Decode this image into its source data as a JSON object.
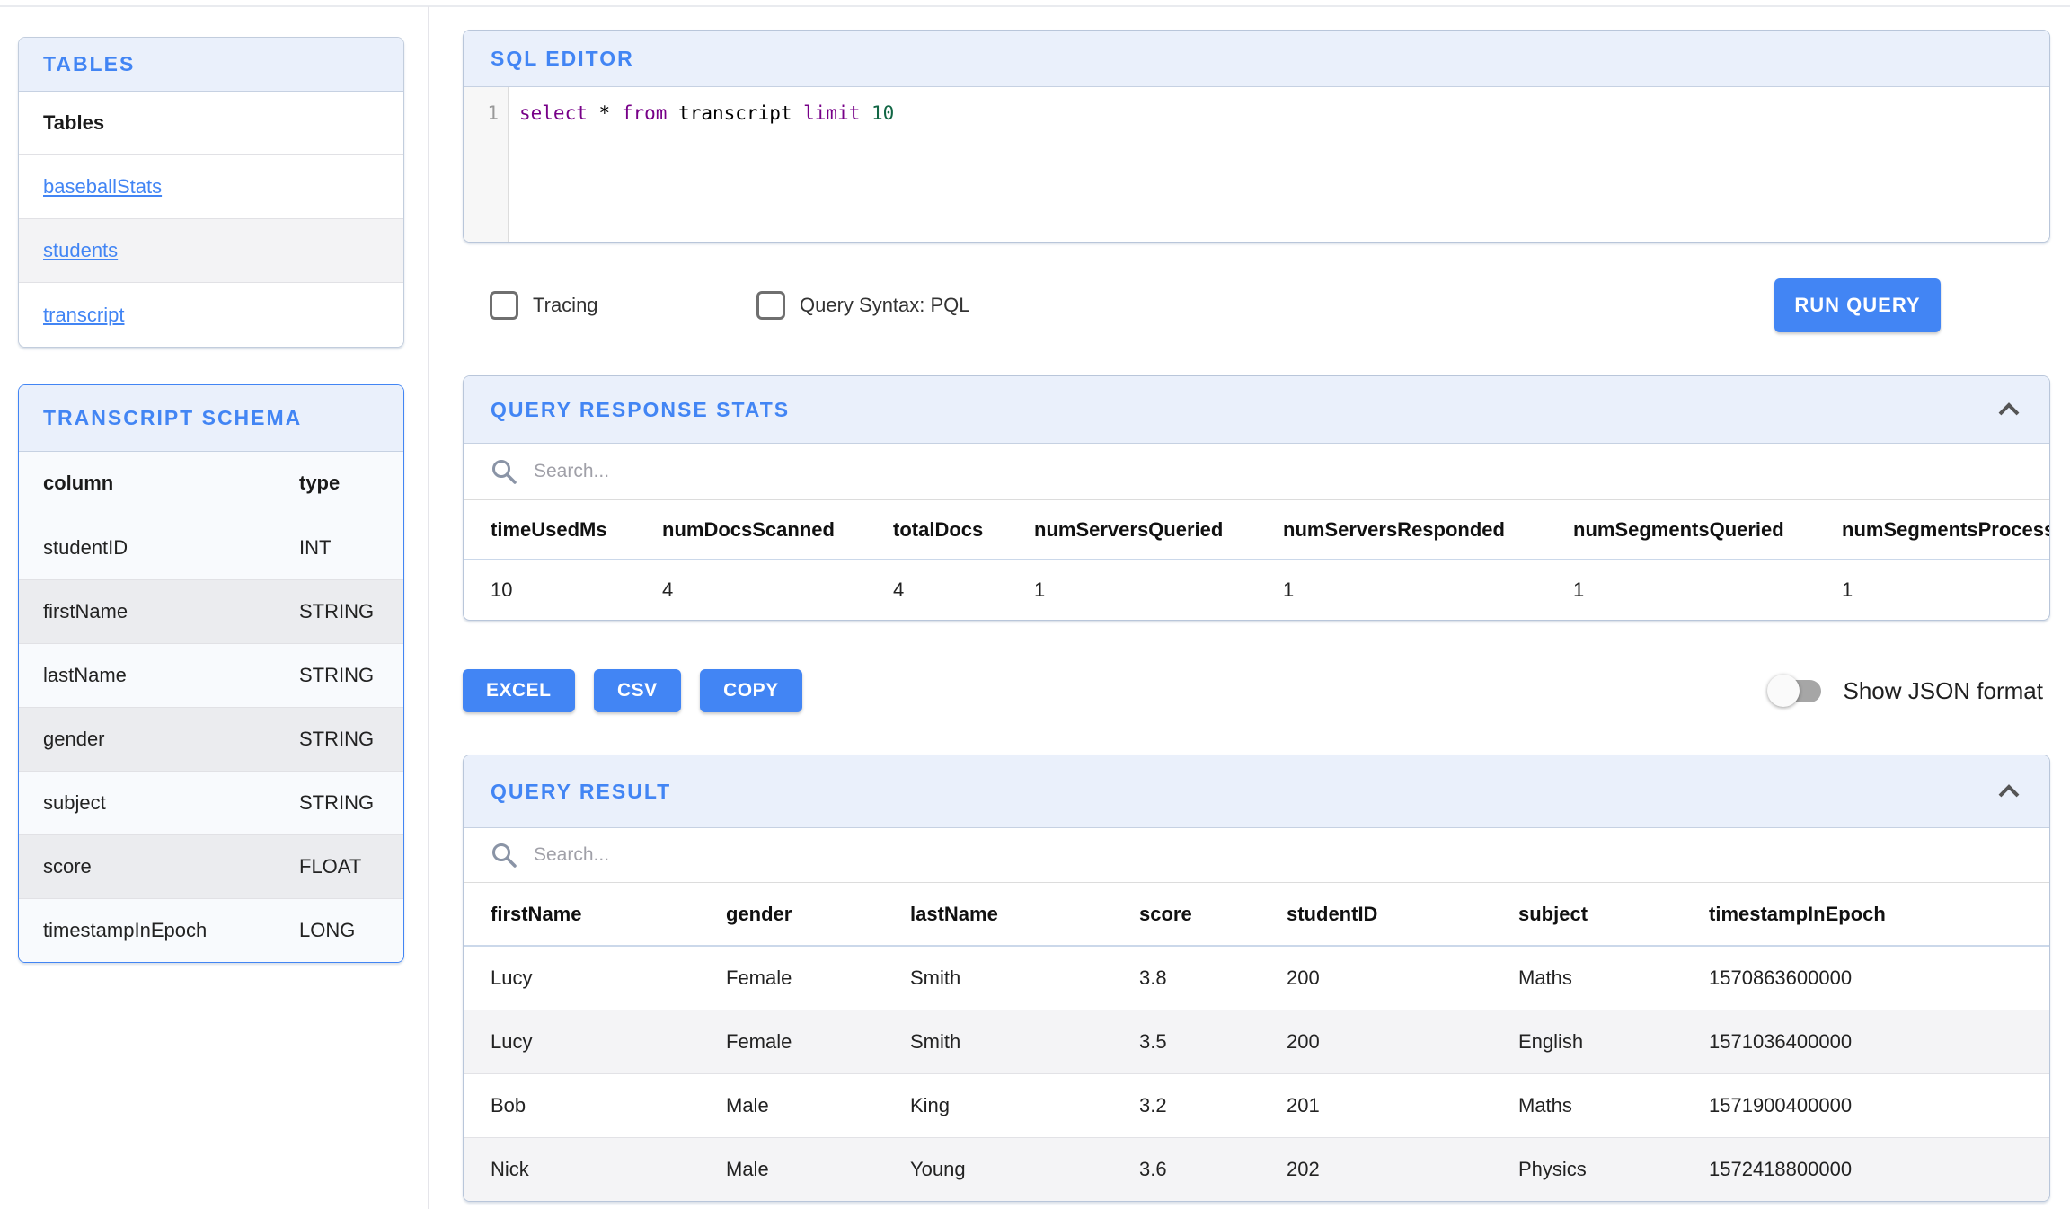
{
  "colors": {
    "accent": "#4285F4",
    "panel_header_bg": "#EAF0FB",
    "keyword_purple": "#770088",
    "number_green": "#116644"
  },
  "sidebar": {
    "tables_panel": {
      "title": "TABLES",
      "list_header": "Tables",
      "items": [
        {
          "label": "baseballStats"
        },
        {
          "label": "students"
        },
        {
          "label": "transcript"
        }
      ]
    },
    "schema_panel": {
      "title": "TRANSCRIPT SCHEMA",
      "columns": [
        "column",
        "type"
      ],
      "rows": [
        [
          "studentID",
          "INT"
        ],
        [
          "firstName",
          "STRING"
        ],
        [
          "lastName",
          "STRING"
        ],
        [
          "gender",
          "STRING"
        ],
        [
          "subject",
          "STRING"
        ],
        [
          "score",
          "FLOAT"
        ],
        [
          "timestampInEpoch",
          "LONG"
        ]
      ]
    }
  },
  "editor": {
    "title": "SQL EDITOR",
    "line_number": "1",
    "code_tokens": [
      {
        "t": "select",
        "c": "keyword"
      },
      {
        "t": " ",
        "c": "plain"
      },
      {
        "t": "*",
        "c": "plain"
      },
      {
        "t": " ",
        "c": "plain"
      },
      {
        "t": "from",
        "c": "keyword"
      },
      {
        "t": " transcript ",
        "c": "plain"
      },
      {
        "t": "limit",
        "c": "keyword"
      },
      {
        "t": " ",
        "c": "plain"
      },
      {
        "t": "10",
        "c": "number"
      }
    ],
    "tracing_label": "Tracing",
    "syntax_label": "Query Syntax: PQL",
    "run_button": "RUN QUERY"
  },
  "stats": {
    "title": "QUERY RESPONSE STATS",
    "search_placeholder": "Search...",
    "columns": [
      "timeUsedMs",
      "numDocsScanned",
      "totalDocs",
      "numServersQueried",
      "numServersResponded",
      "numSegmentsQueried",
      "numSegmentsProcessed"
    ],
    "rows": [
      [
        "10",
        "4",
        "4",
        "1",
        "1",
        "1",
        "1"
      ]
    ]
  },
  "export": {
    "excel_button": "EXCEL",
    "csv_button": "CSV",
    "copy_button": "COPY",
    "toggle_label": "Show JSON format"
  },
  "result": {
    "title": "QUERY RESULT",
    "search_placeholder": "Search...",
    "columns": [
      "firstName",
      "gender",
      "lastName",
      "score",
      "studentID",
      "subject",
      "timestampInEpoch"
    ],
    "rows": [
      [
        "Lucy",
        "Female",
        "Smith",
        "3.8",
        "200",
        "Maths",
        "1570863600000"
      ],
      [
        "Lucy",
        "Female",
        "Smith",
        "3.5",
        "200",
        "English",
        "1571036400000"
      ],
      [
        "Bob",
        "Male",
        "King",
        "3.2",
        "201",
        "Maths",
        "1571900400000"
      ],
      [
        "Nick",
        "Male",
        "Young",
        "3.6",
        "202",
        "Physics",
        "1572418800000"
      ]
    ]
  }
}
